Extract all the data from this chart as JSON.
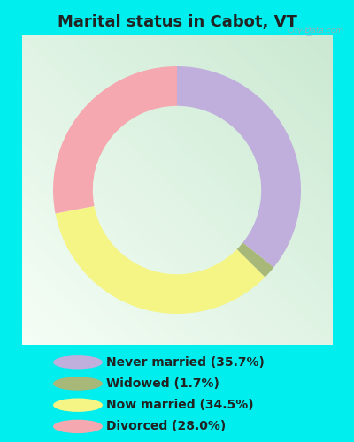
{
  "title": "Marital status in Cabot, VT",
  "slices": [
    35.7,
    1.7,
    34.5,
    28.0
  ],
  "labels": [
    "Never married (35.7%)",
    "Widowed (1.7%)",
    "Now married (34.5%)",
    "Divorced (28.0%)"
  ],
  "colors": [
    "#c0aedd",
    "#a8b878",
    "#f5f585",
    "#f5a8b0"
  ],
  "background_outer": "#00eeee",
  "background_chart_color1": "#c8e8d0",
  "background_chart_color2": "#f0f8f4",
  "title_fontsize": 13,
  "watermark": "City-Data.com",
  "start_angle": 90,
  "donut_width": 0.32,
  "legend_fontsize": 10,
  "title_color": "#222222"
}
